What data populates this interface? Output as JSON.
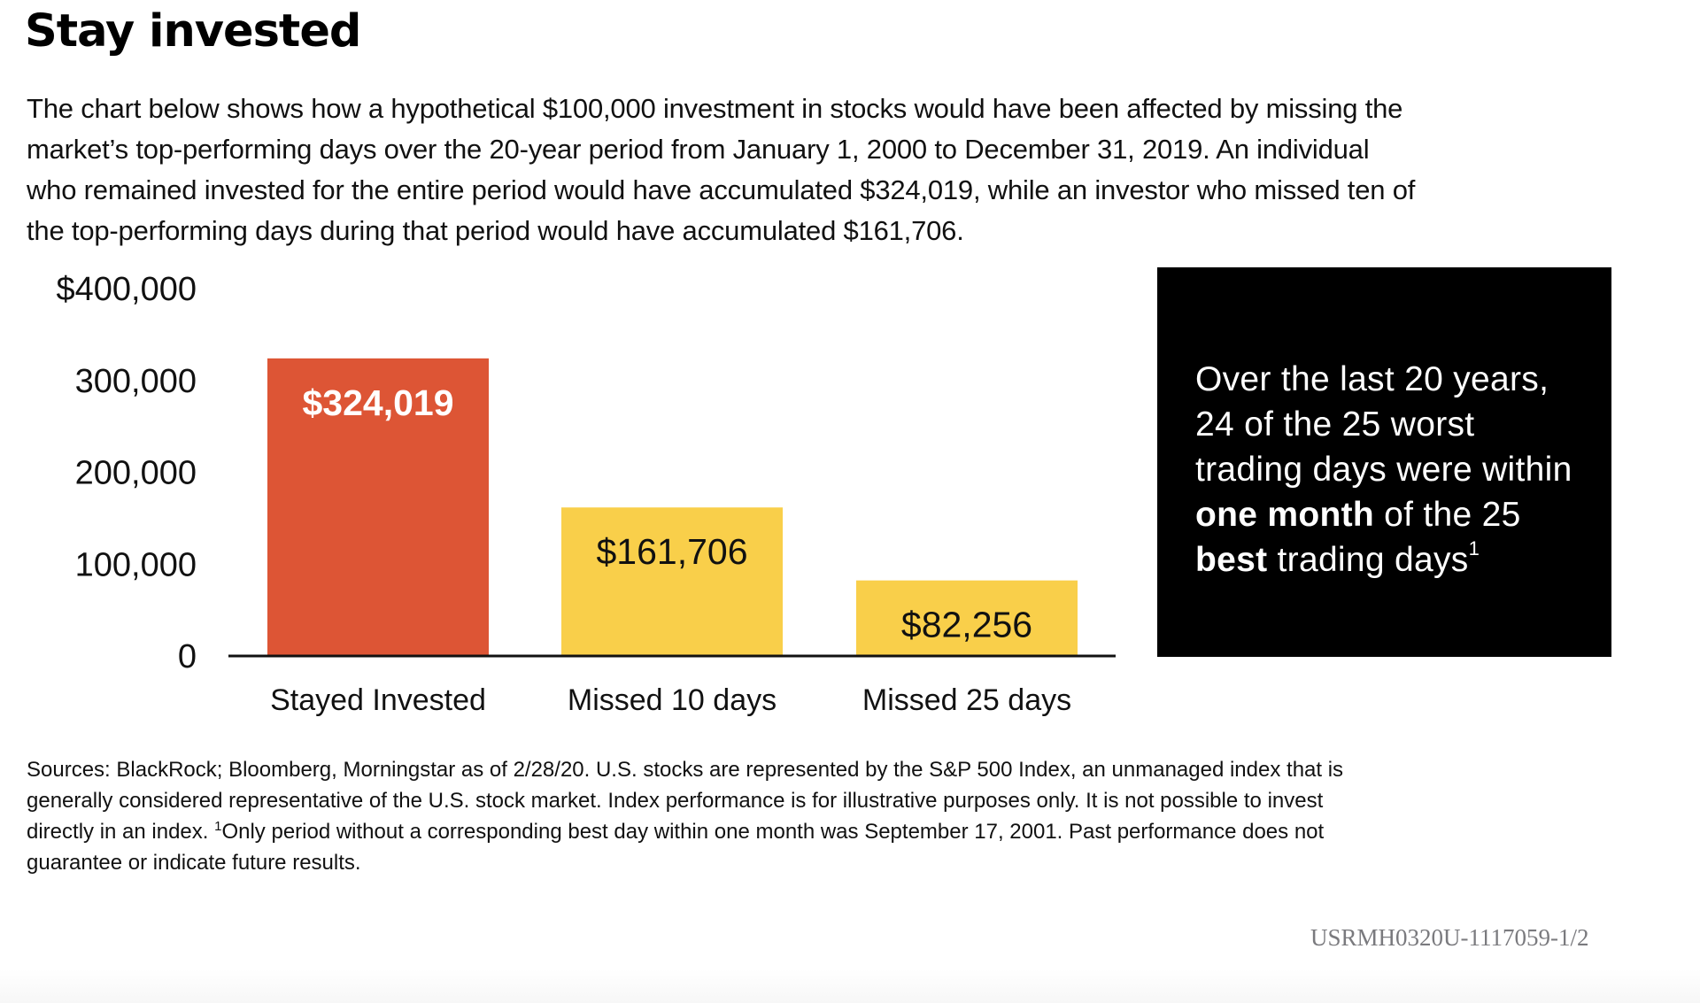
{
  "title": "Stay invested",
  "intro_lines": [
    "The chart below shows how a hypothetical $100,000 investment in stocks would have been affected by missing the",
    "market’s top-performing days over the 20-year period from January 1, 2000 to December 31, 2019.  An individual",
    "who remained invested for the entire period would have accumulated $324,019, while an investor who missed ten of",
    "the top-performing days during that period would have accumulated $161,706."
  ],
  "chart_data": {
    "type": "bar",
    "title": "",
    "xlabel": "",
    "ylabel": "",
    "categories": [
      "Stayed Invested",
      "Missed 10 days",
      "Missed 25 days"
    ],
    "values": [
      324019,
      161706,
      82256
    ],
    "value_labels": [
      "$324,019",
      "$161,706",
      "$82,256"
    ],
    "colors": [
      "#DD5535",
      "#F9CF4A",
      "#F9CF4A"
    ],
    "ylim": [
      0,
      400000
    ],
    "yticks": [
      0,
      100000,
      200000,
      300000,
      400000
    ],
    "ytick_labels": [
      "0",
      "100,000",
      "200,000",
      "300,000",
      "$400,000"
    ],
    "grid": false,
    "legend": "none"
  },
  "callout": {
    "line1": "Over the last 20 years,",
    "line2": "24 of the 25 worst",
    "line3": "trading days were within",
    "line4_bold": "one month",
    "line4_rest": " of the 25",
    "line5_bold": "best",
    "line5_rest": " trading days",
    "footnote_mark": "1"
  },
  "sources": {
    "line1": "Sources: BlackRock; Bloomberg, Morningstar as of 2/28/20. U.S. stocks are represented by the S&P 500 Index, an unmanaged index that is",
    "line2": "generally considered representative of the U.S. stock market. Index performance is for illustrative purposes only. It is not possible to invest",
    "line3_pre": "directly in an index. ",
    "line3_mark": "1",
    "line3_post": "Only period without a corresponding best day within one month was September 17, 2001. Past performance does not",
    "line4": "guarantee or indicate future results."
  },
  "doc_code": "USRMH0320U-1117059-1/2"
}
